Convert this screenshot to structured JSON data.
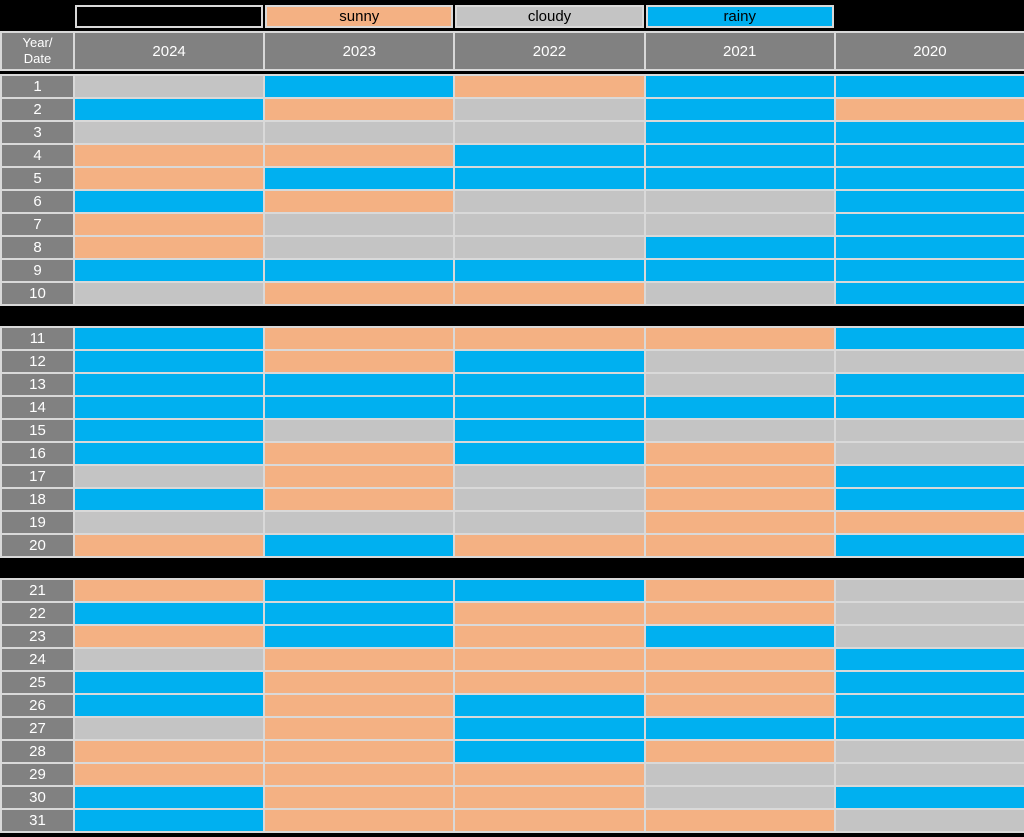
{
  "colors": {
    "sunny": "#F4B183",
    "cloudy": "#C4C4C4",
    "rainy": "#00B0F0",
    "header_bg": "#818181",
    "border": "#D9D9D9",
    "background": "#000000",
    "header_text": "#FFFFFF",
    "legend_text": "#000000"
  },
  "legend": {
    "items": [
      {
        "label": "sunny",
        "condition": "sunny"
      },
      {
        "label": "cloudy",
        "condition": "cloudy"
      },
      {
        "label": "rainy",
        "condition": "rainy"
      }
    ]
  },
  "header": {
    "corner_line1": "Year/",
    "corner_line2": "Date",
    "years": [
      "2024",
      "2023",
      "2022",
      "2021",
      "2020"
    ]
  },
  "chart_data": {
    "type": "heatmap",
    "title": "",
    "row_label_header": "Year/Date",
    "columns": [
      "2024",
      "2023",
      "2022",
      "2021",
      "2020"
    ],
    "legend_entries": [
      "sunny",
      "cloudy",
      "rainy"
    ],
    "blocks": [
      {
        "start": 1,
        "end": 10,
        "mount": "date-block-1"
      },
      {
        "start": 11,
        "end": 20,
        "mount": "date-block-2"
      },
      {
        "start": 21,
        "end": 31,
        "mount": "date-block-3"
      }
    ],
    "rows": [
      {
        "date": 1,
        "conditions": [
          "cloudy",
          "rainy",
          "sunny",
          "rainy",
          "rainy"
        ]
      },
      {
        "date": 2,
        "conditions": [
          "rainy",
          "sunny",
          "cloudy",
          "rainy",
          "sunny"
        ]
      },
      {
        "date": 3,
        "conditions": [
          "cloudy",
          "cloudy",
          "cloudy",
          "rainy",
          "rainy"
        ]
      },
      {
        "date": 4,
        "conditions": [
          "sunny",
          "sunny",
          "rainy",
          "rainy",
          "rainy"
        ]
      },
      {
        "date": 5,
        "conditions": [
          "sunny",
          "rainy",
          "rainy",
          "rainy",
          "rainy"
        ]
      },
      {
        "date": 6,
        "conditions": [
          "rainy",
          "sunny",
          "cloudy",
          "cloudy",
          "rainy"
        ]
      },
      {
        "date": 7,
        "conditions": [
          "sunny",
          "cloudy",
          "cloudy",
          "cloudy",
          "rainy"
        ]
      },
      {
        "date": 8,
        "conditions": [
          "sunny",
          "cloudy",
          "cloudy",
          "rainy",
          "rainy"
        ]
      },
      {
        "date": 9,
        "conditions": [
          "rainy",
          "rainy",
          "rainy",
          "rainy",
          "rainy"
        ]
      },
      {
        "date": 10,
        "conditions": [
          "cloudy",
          "sunny",
          "sunny",
          "cloudy",
          "rainy"
        ]
      },
      {
        "date": 11,
        "conditions": [
          "rainy",
          "sunny",
          "sunny",
          "sunny",
          "rainy"
        ]
      },
      {
        "date": 12,
        "conditions": [
          "rainy",
          "sunny",
          "rainy",
          "cloudy",
          "cloudy"
        ]
      },
      {
        "date": 13,
        "conditions": [
          "rainy",
          "rainy",
          "rainy",
          "cloudy",
          "rainy"
        ]
      },
      {
        "date": 14,
        "conditions": [
          "rainy",
          "rainy",
          "rainy",
          "rainy",
          "rainy"
        ]
      },
      {
        "date": 15,
        "conditions": [
          "rainy",
          "cloudy",
          "rainy",
          "cloudy",
          "cloudy"
        ]
      },
      {
        "date": 16,
        "conditions": [
          "rainy",
          "sunny",
          "rainy",
          "sunny",
          "cloudy"
        ]
      },
      {
        "date": 17,
        "conditions": [
          "cloudy",
          "sunny",
          "cloudy",
          "sunny",
          "rainy"
        ]
      },
      {
        "date": 18,
        "conditions": [
          "rainy",
          "sunny",
          "cloudy",
          "sunny",
          "rainy"
        ]
      },
      {
        "date": 19,
        "conditions": [
          "cloudy",
          "cloudy",
          "cloudy",
          "sunny",
          "sunny"
        ]
      },
      {
        "date": 20,
        "conditions": [
          "sunny",
          "rainy",
          "sunny",
          "sunny",
          "rainy"
        ]
      },
      {
        "date": 21,
        "conditions": [
          "sunny",
          "rainy",
          "rainy",
          "sunny",
          "cloudy"
        ]
      },
      {
        "date": 22,
        "conditions": [
          "rainy",
          "rainy",
          "sunny",
          "sunny",
          "cloudy"
        ]
      },
      {
        "date": 23,
        "conditions": [
          "sunny",
          "rainy",
          "sunny",
          "rainy",
          "cloudy"
        ]
      },
      {
        "date": 24,
        "conditions": [
          "cloudy",
          "sunny",
          "sunny",
          "sunny",
          "rainy"
        ]
      },
      {
        "date": 25,
        "conditions": [
          "rainy",
          "sunny",
          "sunny",
          "sunny",
          "rainy"
        ]
      },
      {
        "date": 26,
        "conditions": [
          "rainy",
          "sunny",
          "rainy",
          "sunny",
          "rainy"
        ]
      },
      {
        "date": 27,
        "conditions": [
          "cloudy",
          "sunny",
          "rainy",
          "rainy",
          "rainy"
        ]
      },
      {
        "date": 28,
        "conditions": [
          "sunny",
          "sunny",
          "rainy",
          "sunny",
          "cloudy"
        ]
      },
      {
        "date": 29,
        "conditions": [
          "sunny",
          "sunny",
          "sunny",
          "cloudy",
          "cloudy"
        ]
      },
      {
        "date": 30,
        "conditions": [
          "rainy",
          "sunny",
          "sunny",
          "cloudy",
          "rainy"
        ]
      },
      {
        "date": 31,
        "conditions": [
          "rainy",
          "sunny",
          "sunny",
          "sunny",
          "cloudy"
        ]
      }
    ]
  }
}
